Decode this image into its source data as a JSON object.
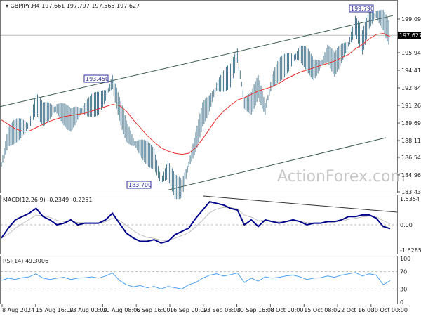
{
  "header": {
    "symbol": "GBPJPY,H4",
    "ohlc": "197.661 197.797 197.565 197.627"
  },
  "watermark": "ActionForex.com",
  "colors": {
    "price": "#4a7890",
    "ma": "#e83030",
    "macd": "#00008b",
    "signal": "#c0c0c0",
    "rsi": "#4aa0f0",
    "channel": "#3a5a4a"
  },
  "chart_data": [
    {
      "type": "line",
      "title": "GBPJPY,H4",
      "yticks": [
        "199.095",
        "195.945",
        "194.415",
        "192.840",
        "191.265",
        "189.690",
        "188.115",
        "186.540",
        "184.965",
        "183.435"
      ],
      "ylim": [
        183.435,
        200.6
      ],
      "current_price": "197.627",
      "annotations": [
        {
          "label": "193.450",
          "value": 193.45
        },
        {
          "label": "183.700",
          "value": 183.7
        },
        {
          "label": "199.790",
          "value": 199.79
        }
      ],
      "series": [
        {
          "name": "price",
          "values": [
            186.0,
            188.5,
            189.0,
            189.3,
            189.5,
            191.5,
            190.5,
            190.8,
            191.0,
            190.5,
            190.0,
            190.6,
            191.0,
            191.3,
            191.5,
            192.2,
            193.4,
            191.0,
            189.0,
            188.0,
            187.5,
            187.0,
            186.5,
            184.5,
            185.5,
            184.0,
            183.8,
            186.0,
            188.0,
            190.5,
            191.5,
            193.0,
            193.5,
            194.0,
            195.8,
            191.5,
            191.5,
            193.0,
            191.0,
            193.5,
            194.5,
            195.0,
            195.5,
            196.0,
            195.5,
            194.5,
            195.0,
            196.0,
            195.0,
            196.0,
            196.8,
            198.5,
            197.0,
            199.0,
            199.5,
            199.0,
            197.6
          ]
        },
        {
          "name": "ma",
          "values": [
            190.0,
            189.6,
            189.2,
            189.0,
            189.0,
            189.3,
            189.6,
            189.9,
            190.1,
            190.3,
            190.4,
            190.5,
            190.6,
            190.8,
            191.0,
            191.2,
            191.4,
            191.3,
            190.8,
            190.0,
            189.3,
            188.6,
            188.0,
            187.5,
            187.2,
            187.0,
            186.9,
            187.0,
            187.5,
            188.3,
            189.2,
            190.1,
            190.8,
            191.3,
            191.8,
            192.0,
            192.3,
            192.6,
            192.8,
            193.0,
            193.3,
            193.7,
            194.0,
            194.3,
            194.5,
            194.7,
            194.9,
            195.1,
            195.3,
            195.6,
            195.9,
            196.4,
            196.8,
            197.3,
            197.7,
            197.8,
            197.5
          ]
        },
        {
          "name": "channel-upper",
          "values": [
            191.2,
            199.4
          ]
        },
        {
          "name": "channel-lower",
          "values": [
            183.7,
            188.4
          ]
        }
      ],
      "xticks": [
        "8 Aug 2024",
        "15 Aug 16:00",
        "23 Aug 00:00",
        "30 Aug 08:00",
        "6 Sep 16:00",
        "16 Sep 00:00",
        "23 Sep 08:00",
        "30 Sep 16:00",
        "8 Oct 00:00",
        "15 Oct 08:00",
        "22 Oct 16:00",
        "30 Oct 00:00"
      ]
    },
    {
      "type": "line",
      "title": "MACD(12,26,9) -0.2349 -0.2251",
      "yticks": [
        "1.5354",
        "0.00",
        "-1.6285"
      ],
      "ylim": [
        -1.6285,
        1.5354
      ],
      "series": [
        {
          "name": "macd",
          "values": [
            -0.8,
            -0.2,
            0.3,
            0.5,
            0.7,
            1.0,
            0.5,
            0.3,
            0.0,
            0.1,
            0.3,
            0.0,
            0.1,
            0.1,
            0.1,
            0.3,
            0.7,
            0.1,
            -0.5,
            -0.8,
            -1.0,
            -1.0,
            -0.9,
            -1.1,
            -1.0,
            -0.6,
            -0.4,
            -0.2,
            0.4,
            0.9,
            1.4,
            1.3,
            1.2,
            1.0,
            0.9,
            0.0,
            0.3,
            -0.1,
            0.3,
            0.2,
            0.1,
            0.2,
            0.3,
            0.2,
            0.0,
            0.1,
            0.1,
            0.2,
            0.2,
            0.3,
            0.5,
            0.5,
            0.6,
            0.6,
            0.4,
            -0.1,
            -0.23
          ]
        }
      ]
    },
    {
      "type": "line",
      "title": "RSI(14) 49.3006",
      "yticks": [
        "100",
        "70",
        "30",
        "0"
      ],
      "ylim": [
        0,
        100
      ],
      "series": [
        {
          "name": "rsi",
          "values": [
            50,
            55,
            52,
            56,
            58,
            65,
            55,
            52,
            55,
            57,
            52,
            55,
            56,
            58,
            55,
            60,
            67,
            50,
            40,
            35,
            38,
            33,
            36,
            30,
            36,
            33,
            30,
            40,
            45,
            55,
            62,
            65,
            60,
            63,
            67,
            45,
            55,
            48,
            58,
            55,
            57,
            60,
            62,
            58,
            52,
            55,
            56,
            60,
            57,
            62,
            65,
            68,
            60,
            65,
            62,
            40,
            49.3
          ]
        }
      ]
    }
  ]
}
